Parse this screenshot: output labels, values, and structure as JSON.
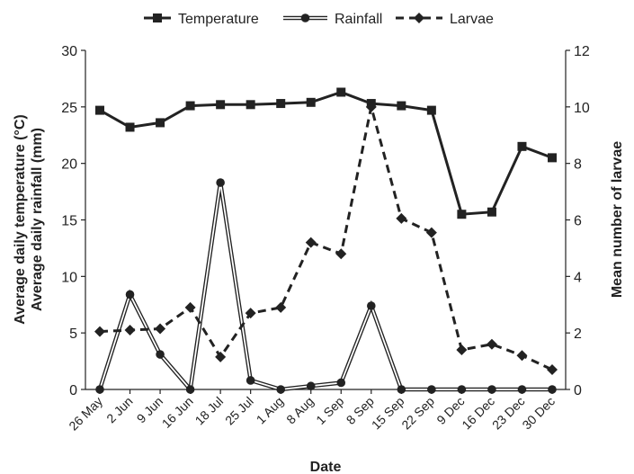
{
  "chart_data": {
    "type": "line",
    "categories": [
      "26 May",
      "2 Jun",
      "9 Jun",
      "16 Jun",
      "18 Jul",
      "25 Jul",
      "1 Aug",
      "8 Aug",
      "1 Sep",
      "8 Sep",
      "15 Sep",
      "22 Sep",
      "9 Dec",
      "16 Dec",
      "23 Dec",
      "30 Dec"
    ],
    "xlabel": "Date",
    "ylabel_left": [
      "Average daily temperature (°C)",
      "Average daily rainfall (mm)"
    ],
    "ylabel_right": "Mean number of larvae",
    "ylim_left": [
      0,
      30
    ],
    "ylim_right": [
      0,
      12
    ],
    "yticks_left": [
      0,
      5,
      10,
      15,
      20,
      25,
      30
    ],
    "yticks_right": [
      0,
      2,
      4,
      6,
      8,
      10,
      12
    ],
    "grid": false,
    "legend_position": "top",
    "series": [
      {
        "name": "Temperature",
        "axis": "left",
        "style": "solid",
        "marker": "square",
        "color": "#222222",
        "values": [
          24.7,
          23.2,
          23.6,
          25.1,
          25.2,
          25.2,
          25.3,
          25.4,
          26.3,
          25.3,
          25.1,
          24.7,
          15.5,
          15.7,
          21.5,
          20.5
        ]
      },
      {
        "name": "Rainfall",
        "axis": "left",
        "style": "double",
        "marker": "circle",
        "color": "#222222",
        "values": [
          0,
          8.4,
          3.1,
          0,
          18.3,
          0.8,
          0,
          0.3,
          0.6,
          7.4,
          0,
          0,
          0,
          0,
          0,
          0
        ]
      },
      {
        "name": "Larvae",
        "axis": "right",
        "style": "dashed",
        "marker": "diamond",
        "color": "#222222",
        "values": [
          2.05,
          2.1,
          2.15,
          2.9,
          1.15,
          2.7,
          2.9,
          5.2,
          4.8,
          10.0,
          6.05,
          5.55,
          1.4,
          1.6,
          1.2,
          0.7
        ]
      }
    ]
  }
}
